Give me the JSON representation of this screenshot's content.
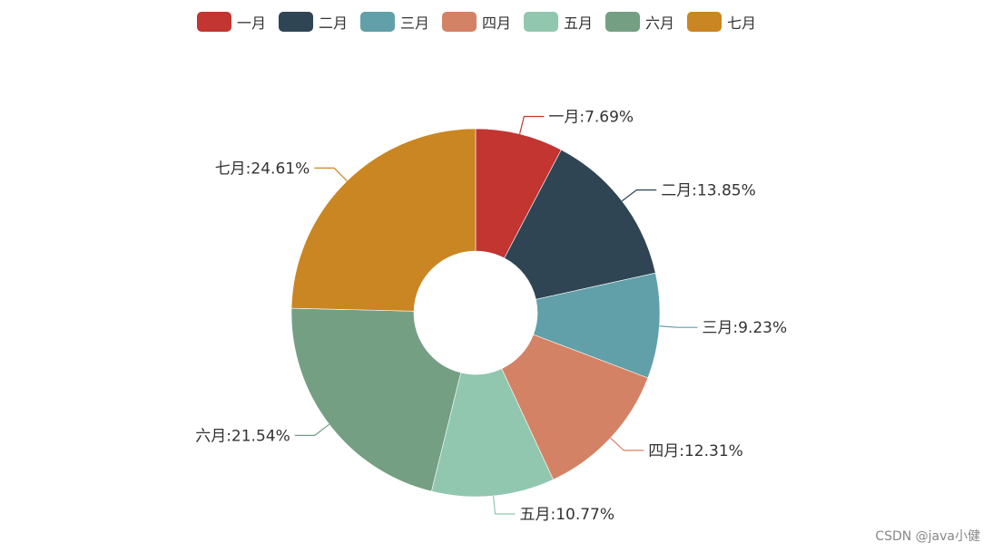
{
  "chart_data": {
    "type": "pie",
    "variant": "donut",
    "categories": [
      "一月",
      "二月",
      "三月",
      "四月",
      "五月",
      "六月",
      "七月"
    ],
    "values": [
      7.69,
      13.85,
      9.23,
      12.31,
      10.77,
      21.54,
      24.61
    ],
    "labels": [
      "一月:7.69%",
      "二月:13.85%",
      "三月:9.23%",
      "四月:12.31%",
      "五月:10.77%",
      "六月:21.54%",
      "七月:24.61%"
    ],
    "colors": [
      "#c23531",
      "#2f4554",
      "#61a0a8",
      "#d48265",
      "#91c7ae",
      "#749f83",
      "#ca8622"
    ],
    "legend_position": "top-center"
  },
  "watermark": "CSDN @java小健"
}
